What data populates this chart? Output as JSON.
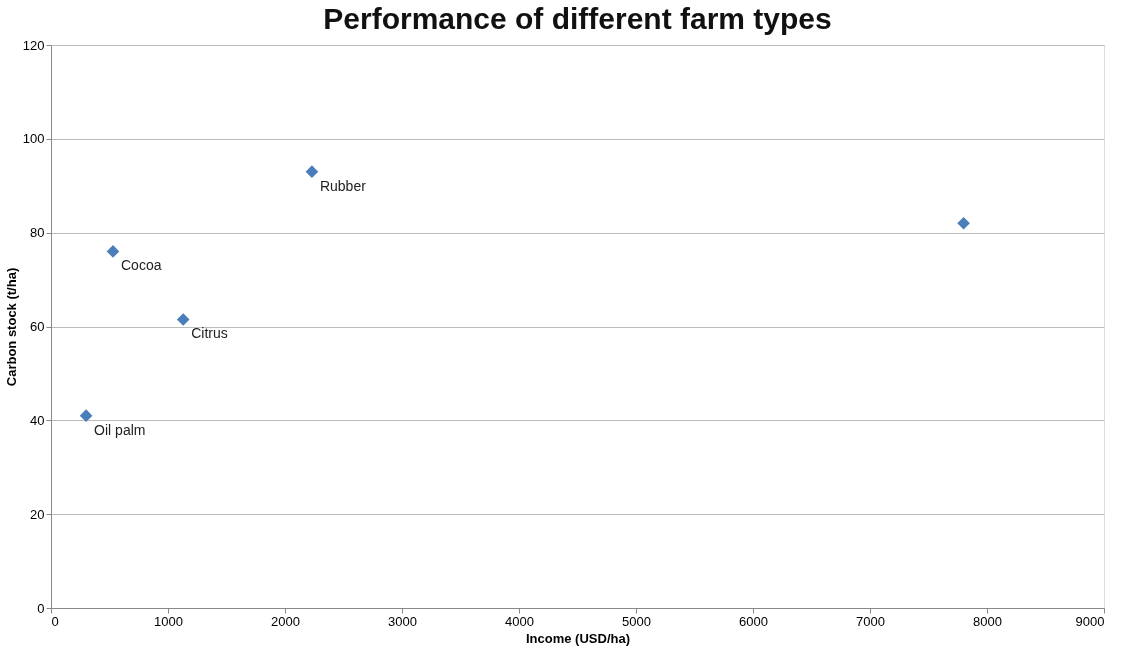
{
  "chart_data": {
    "type": "scatter",
    "title": "Performance of different farm types",
    "xlabel": "Income (USD/ha)",
    "ylabel": "Carbon stock (t/ha)",
    "x": [
      300,
      530,
      1130,
      2230,
      7800
    ],
    "values": [
      41,
      76,
      61.5,
      93,
      82
    ],
    "color": "#4a7ebb",
    "marker": "diamond",
    "grid": "y",
    "xlim": [
      0,
      9000
    ],
    "xticks": [
      0,
      1000,
      2000,
      3000,
      4000,
      5000,
      6000,
      7000,
      8000,
      9000
    ],
    "ylim": [
      0,
      120
    ],
    "yticks": [
      0,
      20,
      40,
      60,
      80,
      100,
      120
    ],
    "annotations": [
      {
        "text": "Oil palm",
        "x": 300,
        "y": 41
      },
      {
        "text": "Cocoa",
        "x": 530,
        "y": 76
      },
      {
        "text": "Citrus",
        "x": 1130,
        "y": 61.5
      },
      {
        "text": "Rubber",
        "x": 2230,
        "y": 93
      }
    ]
  }
}
